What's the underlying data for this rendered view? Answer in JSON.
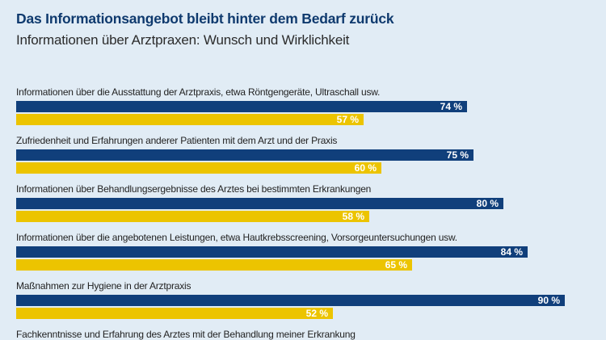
{
  "header": {
    "title": "Das Informationsangebot bleibt hinter dem Bedarf zurück",
    "subtitle": "Informationen über Arztpraxen: Wunsch und Wirklichkeit"
  },
  "colors": {
    "wunsch": "#103f7b",
    "wirklichkeit": "#ecc400",
    "title": "#0f3a6e",
    "background": "#e1ecf5"
  },
  "chart_data": {
    "type": "bar",
    "orientation": "horizontal",
    "title": "Das Informationsangebot bleibt hinter dem Bedarf zurück",
    "subtitle": "Informationen über Arztpraxen: Wunsch und Wirklichkeit",
    "xlabel": "",
    "ylabel": "",
    "xlim": [
      0,
      100
    ],
    "unit": "%",
    "grid": false,
    "categories": [
      "Informationen über die Ausstattung der Arztpraxis, etwa Röntgengeräte, Ultraschall usw.",
      "Zufriedenheit und Erfahrungen anderer Patienten mit dem Arzt und der Praxis",
      "Informationen über Behandlungsergebnisse des Arztes bei bestimmten Erkrankungen",
      "Informationen über die angebotenen Leistungen, etwa Hautkrebsscreening, Vorsorgeuntersuchungen usw.",
      "Maßnahmen zur Hygiene in der Arztpraxis",
      "Fachkenntnisse und Erfahrung des Arztes mit der Behandlung meiner Erkrankung"
    ],
    "series": [
      {
        "name": "blue",
        "color": "#103f7b",
        "values": [
          74,
          75,
          80,
          84,
          90,
          null
        ],
        "labels": [
          "74 %",
          "75 %",
          "80 %",
          "84 %",
          "90 %",
          null
        ]
      },
      {
        "name": "yellow",
        "color": "#ecc400",
        "values": [
          57,
          60,
          58,
          65,
          52,
          null
        ],
        "labels": [
          "57 %",
          "60 %",
          "58 %",
          "65 %",
          "52 %",
          null
        ]
      }
    ]
  }
}
